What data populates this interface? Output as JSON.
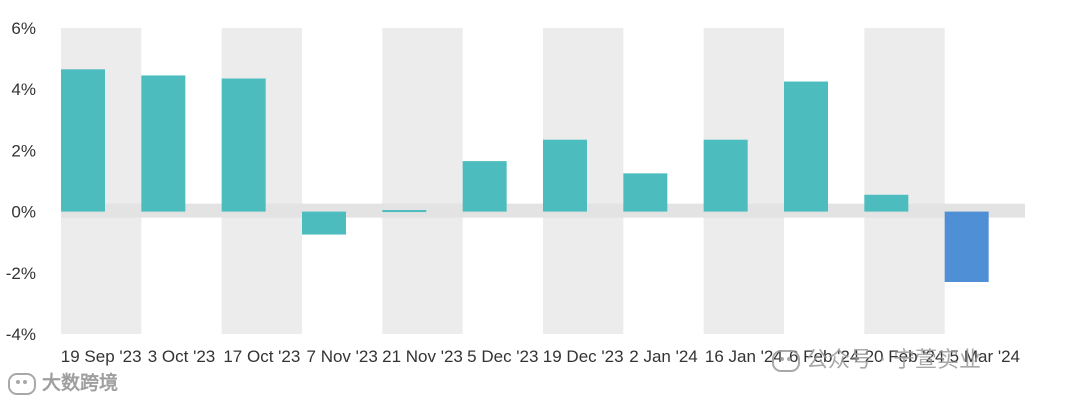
{
  "chart_data": {
    "type": "bar",
    "categories": [
      "19 Sep '23",
      "3 Oct '23",
      "17 Oct '23",
      "7 Nov '23",
      "21 Nov '23",
      "5 Dec '23",
      "19 Dec '23",
      "2 Jan '24",
      "16 Jan '24",
      "6 Feb '24",
      "20 Feb '24",
      "5 Mar '24"
    ],
    "values": [
      4.65,
      4.45,
      4.35,
      -0.75,
      0.05,
      1.65,
      2.35,
      1.25,
      2.35,
      4.25,
      0.55,
      -2.3
    ],
    "y_ticks": [
      "6%",
      "4%",
      "2%",
      "0%",
      "-2%",
      "-4%"
    ],
    "ylim": [
      -4,
      6
    ],
    "grid": false,
    "colors": {
      "positive": "#4cbcbe",
      "last_bar": "#4f8fd6",
      "band": "#ececec",
      "zero_band": "#e3e3e3"
    }
  },
  "watermarks": {
    "left": "大数跨境",
    "right": "公众号 · 宁萱实业"
  }
}
